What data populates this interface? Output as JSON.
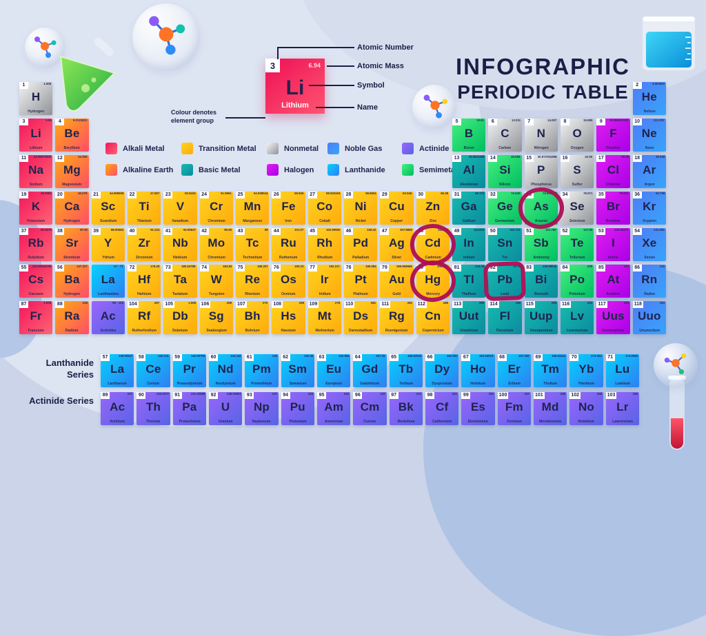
{
  "title": {
    "line1": "INFOGRAPHIC",
    "line2": "PERIODIC TABLE"
  },
  "example": {
    "number": "3",
    "mass": "6.94",
    "symbol": "Li",
    "name": "Lithium",
    "callouts": [
      "Atomic Number",
      "Atomic Mass",
      "Symbol",
      "Name"
    ],
    "note": "Colour denotes element group"
  },
  "series_labels": {
    "lanthanide": "Lanthanide Series",
    "actinide": "Actinide Series"
  },
  "marker_color": "#ad0e54",
  "groups": {
    "alkali": {
      "label": "Alkali Metal",
      "c1": "#f2155d",
      "c2": "#ff6472"
    },
    "alkaline": {
      "label": "Alkaline Earth",
      "c1": "#ffab10",
      "c2": "#ff4d68"
    },
    "transition": {
      "label": "Transition Metal",
      "c1": "#ffd41f",
      "c2": "#ffaa0c"
    },
    "nonmetal": {
      "label": "Nonmetal",
      "c1": "#f4f4f6",
      "c2": "#909396"
    },
    "noblegas": {
      "label": "Noble Gas",
      "c1": "#4f7cf5",
      "c2": "#37a4fb"
    },
    "halogen": {
      "label": "Halogen",
      "c1": "#e01df2",
      "c2": "#a900e6"
    },
    "basicmetal": {
      "label": "Basic Metal",
      "c1": "#16bcb0",
      "c2": "#0b8b9d"
    },
    "semimetal": {
      "label": "Semimetal",
      "c1": "#44f07e",
      "c2": "#00bd62"
    },
    "lanthanide": {
      "label": "Lanthanide",
      "c1": "#04d2fd",
      "c2": "#2e7ff2"
    },
    "actinide": {
      "label": "Actinide",
      "c1": "#9a66fb",
      "c2": "#5763e6"
    }
  },
  "legend": {
    "rows": [
      [
        "alkali",
        "transition",
        "nonmetal",
        "noblegas",
        "actinide"
      ],
      [
        "alkaline",
        "basicmetal",
        "halogen",
        "lanthanide",
        "semimetal"
      ]
    ]
  },
  "elements": [
    {
      "r": 1,
      "c": 1,
      "n": "1",
      "m": "1.008",
      "s": "H",
      "name": "Hydrogen",
      "g": "nonmetal"
    },
    {
      "r": 1,
      "c": 18,
      "n": "2",
      "m": "4.002602",
      "s": "He",
      "name": "Helium",
      "g": "noblegas"
    },
    {
      "r": 2,
      "c": 1,
      "n": "3",
      "m": "6.94",
      "s": "Li",
      "name": "Lithium",
      "g": "alkali"
    },
    {
      "r": 2,
      "c": 2,
      "n": "4",
      "m": "9.0121831",
      "s": "Be",
      "name": "Beryllium",
      "g": "alkaline"
    },
    {
      "r": 2,
      "c": 13,
      "n": "5",
      "m": "10.81",
      "s": "B",
      "name": "Boron",
      "g": "semimetal"
    },
    {
      "r": 2,
      "c": 14,
      "n": "6",
      "m": "12.011",
      "s": "C",
      "name": "Carbon",
      "g": "nonmetal"
    },
    {
      "r": 2,
      "c": 15,
      "n": "7",
      "m": "14.007",
      "s": "N",
      "name": "Nitrogen",
      "g": "nonmetal"
    },
    {
      "r": 2,
      "c": 16,
      "n": "8",
      "m": "15.999",
      "s": "O",
      "name": "Oxygen",
      "g": "nonmetal"
    },
    {
      "r": 2,
      "c": 17,
      "n": "9",
      "m": "18.998403163",
      "s": "F",
      "name": "Fluorine",
      "g": "halogen"
    },
    {
      "r": 2,
      "c": 18,
      "n": "10",
      "m": "20.1797",
      "s": "Ne",
      "name": "Neon",
      "g": "noblegas"
    },
    {
      "r": 3,
      "c": 1,
      "n": "11",
      "m": "22.98976928",
      "s": "Na",
      "name": "Sodium",
      "g": "alkali"
    },
    {
      "r": 3,
      "c": 2,
      "n": "12",
      "m": "24.305",
      "s": "Mg",
      "name": "Magnesium",
      "g": "alkaline"
    },
    {
      "r": 3,
      "c": 13,
      "n": "13",
      "m": "26.9815385",
      "s": "Al",
      "name": "Aluminium",
      "g": "basicmetal"
    },
    {
      "r": 3,
      "c": 14,
      "n": "14",
      "m": "28.085",
      "s": "Si",
      "name": "Silicon",
      "g": "semimetal"
    },
    {
      "r": 3,
      "c": 15,
      "n": "15",
      "m": "30.973761998",
      "s": "P",
      "name": "Phosphorus",
      "g": "nonmetal"
    },
    {
      "r": 3,
      "c": 16,
      "n": "16",
      "m": "32.06",
      "s": "S",
      "name": "Sulfur",
      "g": "nonmetal"
    },
    {
      "r": 3,
      "c": 17,
      "n": "17",
      "m": "35.45",
      "s": "Cl",
      "name": "Chlorine",
      "g": "halogen"
    },
    {
      "r": 3,
      "c": 18,
      "n": "18",
      "m": "39.948",
      "s": "Ar",
      "name": "Argon",
      "g": "noblegas"
    },
    {
      "r": 4,
      "c": 1,
      "n": "19",
      "m": "39.0983",
      "s": "K",
      "name": "Potassium",
      "g": "alkali"
    },
    {
      "r": 4,
      "c": 2,
      "n": "20",
      "m": "40.078",
      "s": "Ca",
      "name": "Hydrogen",
      "g": "alkaline"
    },
    {
      "r": 4,
      "c": 3,
      "n": "21",
      "m": "44.955908",
      "s": "Sc",
      "name": "Scandium",
      "g": "transition"
    },
    {
      "r": 4,
      "c": 4,
      "n": "22",
      "m": "47.867",
      "s": "Ti",
      "name": "Titanium",
      "g": "transition"
    },
    {
      "r": 4,
      "c": 5,
      "n": "23",
      "m": "50.9415",
      "s": "V",
      "name": "Vanadium",
      "g": "transition"
    },
    {
      "r": 4,
      "c": 6,
      "n": "24",
      "m": "51.9961",
      "s": "Cr",
      "name": "Chromium",
      "g": "transition"
    },
    {
      "r": 4,
      "c": 7,
      "n": "25",
      "m": "54.938044",
      "s": "Mn",
      "name": "Manganese",
      "g": "transition"
    },
    {
      "r": 4,
      "c": 8,
      "n": "26",
      "m": "55.845",
      "s": "Fe",
      "name": "Iron",
      "g": "transition"
    },
    {
      "r": 4,
      "c": 9,
      "n": "27",
      "m": "58.933194",
      "s": "Co",
      "name": "Cobalt",
      "g": "transition"
    },
    {
      "r": 4,
      "c": 10,
      "n": "28",
      "m": "58.6934",
      "s": "Ni",
      "name": "Nickel",
      "g": "transition"
    },
    {
      "r": 4,
      "c": 11,
      "n": "29",
      "m": "63.546",
      "s": "Cu",
      "name": "Copper",
      "g": "transition"
    },
    {
      "r": 4,
      "c": 12,
      "n": "30",
      "m": "65.38",
      "s": "Zn",
      "name": "Zinc",
      "g": "transition"
    },
    {
      "r": 4,
      "c": 13,
      "n": "31",
      "m": "69.723",
      "s": "Ga",
      "name": "Gallium",
      "g": "basicmetal"
    },
    {
      "r": 4,
      "c": 14,
      "n": "32",
      "m": "72.630",
      "s": "Ge",
      "name": "Germanium",
      "g": "semimetal"
    },
    {
      "r": 4,
      "c": 15,
      "n": "33",
      "m": "74.921595",
      "s": "As",
      "name": "Arsenic",
      "g": "semimetal",
      "mark": "round"
    },
    {
      "r": 4,
      "c": 16,
      "n": "34",
      "m": "78.971",
      "s": "Se",
      "name": "Selenium",
      "g": "nonmetal"
    },
    {
      "r": 4,
      "c": 17,
      "n": "35",
      "m": "79.904",
      "s": "Br",
      "name": "Bromine",
      "g": "halogen"
    },
    {
      "r": 4,
      "c": 18,
      "n": "36",
      "m": "83.798",
      "s": "Kr",
      "name": "Krypton",
      "g": "noblegas"
    },
    {
      "r": 5,
      "c": 1,
      "n": "37",
      "m": "85.4678",
      "s": "Rb",
      "name": "Rubidium",
      "g": "alkali"
    },
    {
      "r": 5,
      "c": 2,
      "n": "38",
      "m": "87.62",
      "s": "Sr",
      "name": "Strontium",
      "g": "alkaline"
    },
    {
      "r": 5,
      "c": 3,
      "n": "39",
      "m": "88.90584",
      "s": "Y",
      "name": "Yttrium",
      "g": "transition"
    },
    {
      "r": 5,
      "c": 4,
      "n": "40",
      "m": "91.224",
      "s": "Zr",
      "name": "Zirconium",
      "g": "transition"
    },
    {
      "r": 5,
      "c": 5,
      "n": "41",
      "m": "92.90637",
      "s": "Nb",
      "name": "Niobium",
      "g": "transition"
    },
    {
      "r": 5,
      "c": 6,
      "n": "42",
      "m": "95.95",
      "s": "Mo",
      "name": "Chromium",
      "g": "transition"
    },
    {
      "r": 5,
      "c": 7,
      "n": "43",
      "m": "98",
      "s": "Tc",
      "name": "Technetium",
      "g": "transition"
    },
    {
      "r": 5,
      "c": 8,
      "n": "44",
      "m": "101.07",
      "s": "Ru",
      "name": "Ruthenium",
      "g": "transition"
    },
    {
      "r": 5,
      "c": 9,
      "n": "45",
      "m": "102.90550",
      "s": "Rh",
      "name": "Rhodium",
      "g": "transition"
    },
    {
      "r": 5,
      "c": 10,
      "n": "46",
      "m": "106.42",
      "s": "Pd",
      "name": "Palladium",
      "g": "transition"
    },
    {
      "r": 5,
      "c": 11,
      "n": "47",
      "m": "107.8682",
      "s": "Ag",
      "name": "Silver",
      "g": "transition"
    },
    {
      "r": 5,
      "c": 12,
      "n": "48",
      "m": "112.414",
      "s": "Cd",
      "name": "Cadmium",
      "g": "transition",
      "mark": "round"
    },
    {
      "r": 5,
      "c": 13,
      "n": "49",
      "m": "114.818",
      "s": "In",
      "name": "Indium",
      "g": "basicmetal"
    },
    {
      "r": 5,
      "c": 14,
      "n": "50",
      "m": "118.710",
      "s": "Sn",
      "name": "Tin",
      "g": "basicmetal"
    },
    {
      "r": 5,
      "c": 15,
      "n": "51",
      "m": "121.760",
      "s": "Sb",
      "name": "Antimony",
      "g": "semimetal"
    },
    {
      "r": 5,
      "c": 16,
      "n": "52",
      "m": "127.60",
      "s": "Te",
      "name": "Tellurium",
      "g": "semimetal"
    },
    {
      "r": 5,
      "c": 17,
      "n": "53",
      "m": "126.90447",
      "s": "I",
      "name": "Iodine",
      "g": "halogen"
    },
    {
      "r": 5,
      "c": 18,
      "n": "54",
      "m": "131.293",
      "s": "Xe",
      "name": "Xenon",
      "g": "noblegas"
    },
    {
      "r": 6,
      "c": 1,
      "n": "55",
      "m": "132.90545196",
      "s": "Cs",
      "name": "Caesium",
      "g": "alkali"
    },
    {
      "r": 6,
      "c": 2,
      "n": "56",
      "m": "137.327",
      "s": "Ba",
      "name": "Hydrogen",
      "g": "alkaline"
    },
    {
      "r": 6,
      "c": 3,
      "n": "",
      "m": "57 - 71",
      "s": "La",
      "name": "Lanthanides",
      "g": "lanthanide"
    },
    {
      "r": 6,
      "c": 4,
      "n": "72",
      "m": "178.49",
      "s": "Hf",
      "name": "Hafnium",
      "g": "transition"
    },
    {
      "r": 6,
      "c": 5,
      "n": "73",
      "m": "180.94788",
      "s": "Ta",
      "name": "Tantalum",
      "g": "transition"
    },
    {
      "r": 6,
      "c": 6,
      "n": "74",
      "m": "183.84",
      "s": "W",
      "name": "Tungsten",
      "g": "transition"
    },
    {
      "r": 6,
      "c": 7,
      "n": "75",
      "m": "186.207",
      "s": "Re",
      "name": "Rhenium",
      "g": "transition"
    },
    {
      "r": 6,
      "c": 8,
      "n": "76",
      "m": "190.23",
      "s": "Os",
      "name": "Osmium",
      "g": "transition"
    },
    {
      "r": 6,
      "c": 9,
      "n": "77",
      "m": "192.217",
      "s": "Ir",
      "name": "Iridium",
      "g": "transition"
    },
    {
      "r": 6,
      "c": 10,
      "n": "78",
      "m": "195.084",
      "s": "Pt",
      "name": "Platinum",
      "g": "transition"
    },
    {
      "r": 6,
      "c": 11,
      "n": "79",
      "m": "196.966569",
      "s": "Au",
      "name": "Gold",
      "g": "transition"
    },
    {
      "r": 6,
      "c": 12,
      "n": "80",
      "m": "200.592",
      "s": "Hg",
      "name": "Mercury",
      "g": "transition",
      "mark": "round"
    },
    {
      "r": 6,
      "c": 13,
      "n": "81",
      "m": "204.38",
      "s": "Tl",
      "name": "Thallium",
      "g": "basicmetal"
    },
    {
      "r": 6,
      "c": 14,
      "n": "82",
      "m": "207.2",
      "s": "Pb",
      "name": "Lead",
      "g": "basicmetal",
      "mark": "square"
    },
    {
      "r": 6,
      "c": 15,
      "n": "83",
      "m": "208.98040",
      "s": "Bi",
      "name": "Bismuth",
      "g": "basicmetal"
    },
    {
      "r": 6,
      "c": 16,
      "n": "84",
      "m": "209",
      "s": "Po",
      "name": "Polonium",
      "g": "semimetal"
    },
    {
      "r": 6,
      "c": 17,
      "n": "85",
      "m": "210",
      "s": "At",
      "name": "Astatine",
      "g": "halogen"
    },
    {
      "r": 6,
      "c": 18,
      "n": "86",
      "m": "222",
      "s": "Rn",
      "name": "Radon",
      "g": "noblegas"
    },
    {
      "r": 7,
      "c": 1,
      "n": "87",
      "m": "1.008",
      "s": "Fr",
      "name": "Francium",
      "g": "alkali"
    },
    {
      "r": 7,
      "c": 2,
      "n": "88",
      "m": "226",
      "s": "Ra",
      "name": "Radium",
      "g": "alkaline"
    },
    {
      "r": 7,
      "c": 3,
      "n": "",
      "m": "89 - 103",
      "s": "Ac",
      "name": "Actinides",
      "g": "actinide"
    },
    {
      "r": 7,
      "c": 4,
      "n": "104",
      "m": "267",
      "s": "Rf",
      "name": "Rutherfordium",
      "g": "transition"
    },
    {
      "r": 7,
      "c": 5,
      "n": "105",
      "m": "1.008",
      "s": "Db",
      "name": "Dubnium",
      "g": "transition"
    },
    {
      "r": 7,
      "c": 6,
      "n": "106",
      "m": "269",
      "s": "Sg",
      "name": "Seaborgium",
      "g": "transition"
    },
    {
      "r": 7,
      "c": 7,
      "n": "107",
      "m": "270",
      "s": "Bh",
      "name": "Bohrium",
      "g": "transition"
    },
    {
      "r": 7,
      "c": 8,
      "n": "108",
      "m": "269",
      "s": "Hs",
      "name": "Hassium",
      "g": "transition"
    },
    {
      "r": 7,
      "c": 9,
      "n": "109",
      "m": "278",
      "s": "Mt",
      "name": "Meitnerium",
      "g": "transition"
    },
    {
      "r": 7,
      "c": 10,
      "n": "110",
      "m": "281",
      "s": "Ds",
      "name": "Darmstadtium",
      "g": "transition"
    },
    {
      "r": 7,
      "c": 11,
      "n": "111",
      "m": "281",
      "s": "Rg",
      "name": "Roentgenium",
      "g": "transition"
    },
    {
      "r": 7,
      "c": 12,
      "n": "112",
      "m": "285",
      "s": "Cn",
      "name": "Copernicium",
      "g": "transition"
    },
    {
      "r": 7,
      "c": 13,
      "n": "113",
      "m": "286",
      "s": "Uut",
      "name": "Ununtrium",
      "g": "basicmetal"
    },
    {
      "r": 7,
      "c": 14,
      "n": "114",
      "m": "289",
      "s": "Fl",
      "name": "Flerovium",
      "g": "basicmetal"
    },
    {
      "r": 7,
      "c": 15,
      "n": "115",
      "m": "289",
      "s": "Uup",
      "name": "Ununpentium",
      "g": "basicmetal"
    },
    {
      "r": 7,
      "c": 16,
      "n": "116",
      "m": "293",
      "s": "Lv",
      "name": "Livermorium",
      "g": "basicmetal"
    },
    {
      "r": 7,
      "c": 17,
      "n": "117",
      "m": "294",
      "s": "Uus",
      "name": "Ununseptium",
      "g": "halogen"
    },
    {
      "r": 7,
      "c": 18,
      "n": "118",
      "m": "294",
      "s": "Uuo",
      "name": "Ununoctium",
      "g": "noblegas"
    }
  ],
  "lanthanide_series": [
    {
      "n": "57",
      "m": "138.90547",
      "s": "La",
      "name": "Lanthanum",
      "g": "lanthanide"
    },
    {
      "n": "58",
      "m": "140.116",
      "s": "Ce",
      "name": "Cerium",
      "g": "lanthanide"
    },
    {
      "n": "59",
      "m": "140.90766",
      "s": "Pr",
      "name": "Praseodymium",
      "g": "lanthanide"
    },
    {
      "n": "60",
      "m": "144.242",
      "s": "Nd",
      "name": "Neodymium",
      "g": "lanthanide"
    },
    {
      "n": "61",
      "m": "145",
      "s": "Pm",
      "name": "Promethium",
      "g": "lanthanide"
    },
    {
      "n": "62",
      "m": "150.36",
      "s": "Sm",
      "name": "Samarium",
      "g": "lanthanide"
    },
    {
      "n": "63",
      "m": "151.964",
      "s": "Eu",
      "name": "Europium",
      "g": "lanthanide"
    },
    {
      "n": "64",
      "m": "157.25",
      "s": "Gd",
      "name": "Gadolinium",
      "g": "lanthanide"
    },
    {
      "n": "65",
      "m": "158.92535",
      "s": "Tb",
      "name": "Terbium",
      "g": "lanthanide"
    },
    {
      "n": "66",
      "m": "162.500",
      "s": "Dy",
      "name": "Dysprosium",
      "g": "lanthanide"
    },
    {
      "n": "67",
      "m": "164.93033",
      "s": "Ho",
      "name": "Holmium",
      "g": "lanthanide"
    },
    {
      "n": "68",
      "m": "167.259",
      "s": "Er",
      "name": "Erbium",
      "g": "lanthanide"
    },
    {
      "n": "69",
      "m": "168.93422",
      "s": "Tm",
      "name": "Thulium",
      "g": "lanthanide"
    },
    {
      "n": "70",
      "m": "173.054",
      "s": "Yb",
      "name": "Ytterbium",
      "g": "lanthanide"
    },
    {
      "n": "71",
      "m": "174.9668",
      "s": "Lu",
      "name": "Lutetium",
      "g": "lanthanide"
    }
  ],
  "actinide_series": [
    {
      "n": "89",
      "m": "227",
      "s": "Ac",
      "name": "Actinium",
      "g": "actinide"
    },
    {
      "n": "90",
      "m": "232.0377",
      "s": "Th",
      "name": "Thorium",
      "g": "actinide"
    },
    {
      "n": "91",
      "m": "231.03588",
      "s": "Pa",
      "name": "Protactinium",
      "g": "actinide"
    },
    {
      "n": "92",
      "m": "238.02891",
      "s": "U",
      "name": "Uranium",
      "g": "actinide"
    },
    {
      "n": "93",
      "m": "237",
      "s": "Np",
      "name": "Neptunium",
      "g": "actinide"
    },
    {
      "n": "94",
      "m": "244",
      "s": "Pu",
      "name": "Plutonium",
      "g": "actinide"
    },
    {
      "n": "95",
      "m": "243",
      "s": "Am",
      "name": "Americium",
      "g": "actinide"
    },
    {
      "n": "96",
      "m": "247",
      "s": "Cm",
      "name": "Curium",
      "g": "actinide"
    },
    {
      "n": "97",
      "m": "247",
      "s": "Bk",
      "name": "Berkelium",
      "g": "actinide"
    },
    {
      "n": "98",
      "m": "251",
      "s": "Cf",
      "name": "Californium",
      "g": "actinide"
    },
    {
      "n": "99",
      "m": "252",
      "s": "Es",
      "name": "Einsteinium",
      "g": "actinide"
    },
    {
      "n": "100",
      "m": "257",
      "s": "Fm",
      "name": "Fermium",
      "g": "actinide"
    },
    {
      "n": "101",
      "m": "258",
      "s": "Md",
      "name": "Mendelevium",
      "g": "actinide"
    },
    {
      "n": "102",
      "m": "259",
      "s": "No",
      "name": "Nobelium",
      "g": "actinide"
    },
    {
      "n": "103",
      "m": "266",
      "s": "Lr",
      "name": "Lawrencium",
      "g": "actinide"
    }
  ]
}
